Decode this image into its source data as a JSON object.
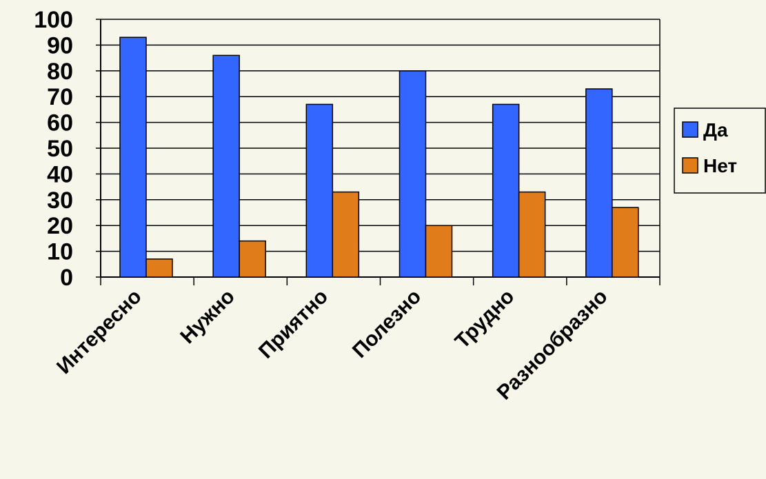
{
  "chart_data": {
    "type": "bar",
    "categories": [
      "Интересно",
      "Нужно",
      "Приятно",
      "Полезно",
      "Трудно",
      "Разнообразно"
    ],
    "series": [
      {
        "name": "Да",
        "values": [
          93,
          86,
          67,
          80,
          67,
          73
        ],
        "color": "#3366ff"
      },
      {
        "name": "Нет",
        "values": [
          7,
          14,
          33,
          20,
          33,
          27
        ],
        "color": "#e07d1a"
      }
    ],
    "ylim": [
      0,
      100
    ],
    "yticks": [
      0,
      10,
      20,
      30,
      40,
      50,
      60,
      70,
      80,
      90,
      100
    ],
    "grid": true,
    "legend_position": "right"
  }
}
